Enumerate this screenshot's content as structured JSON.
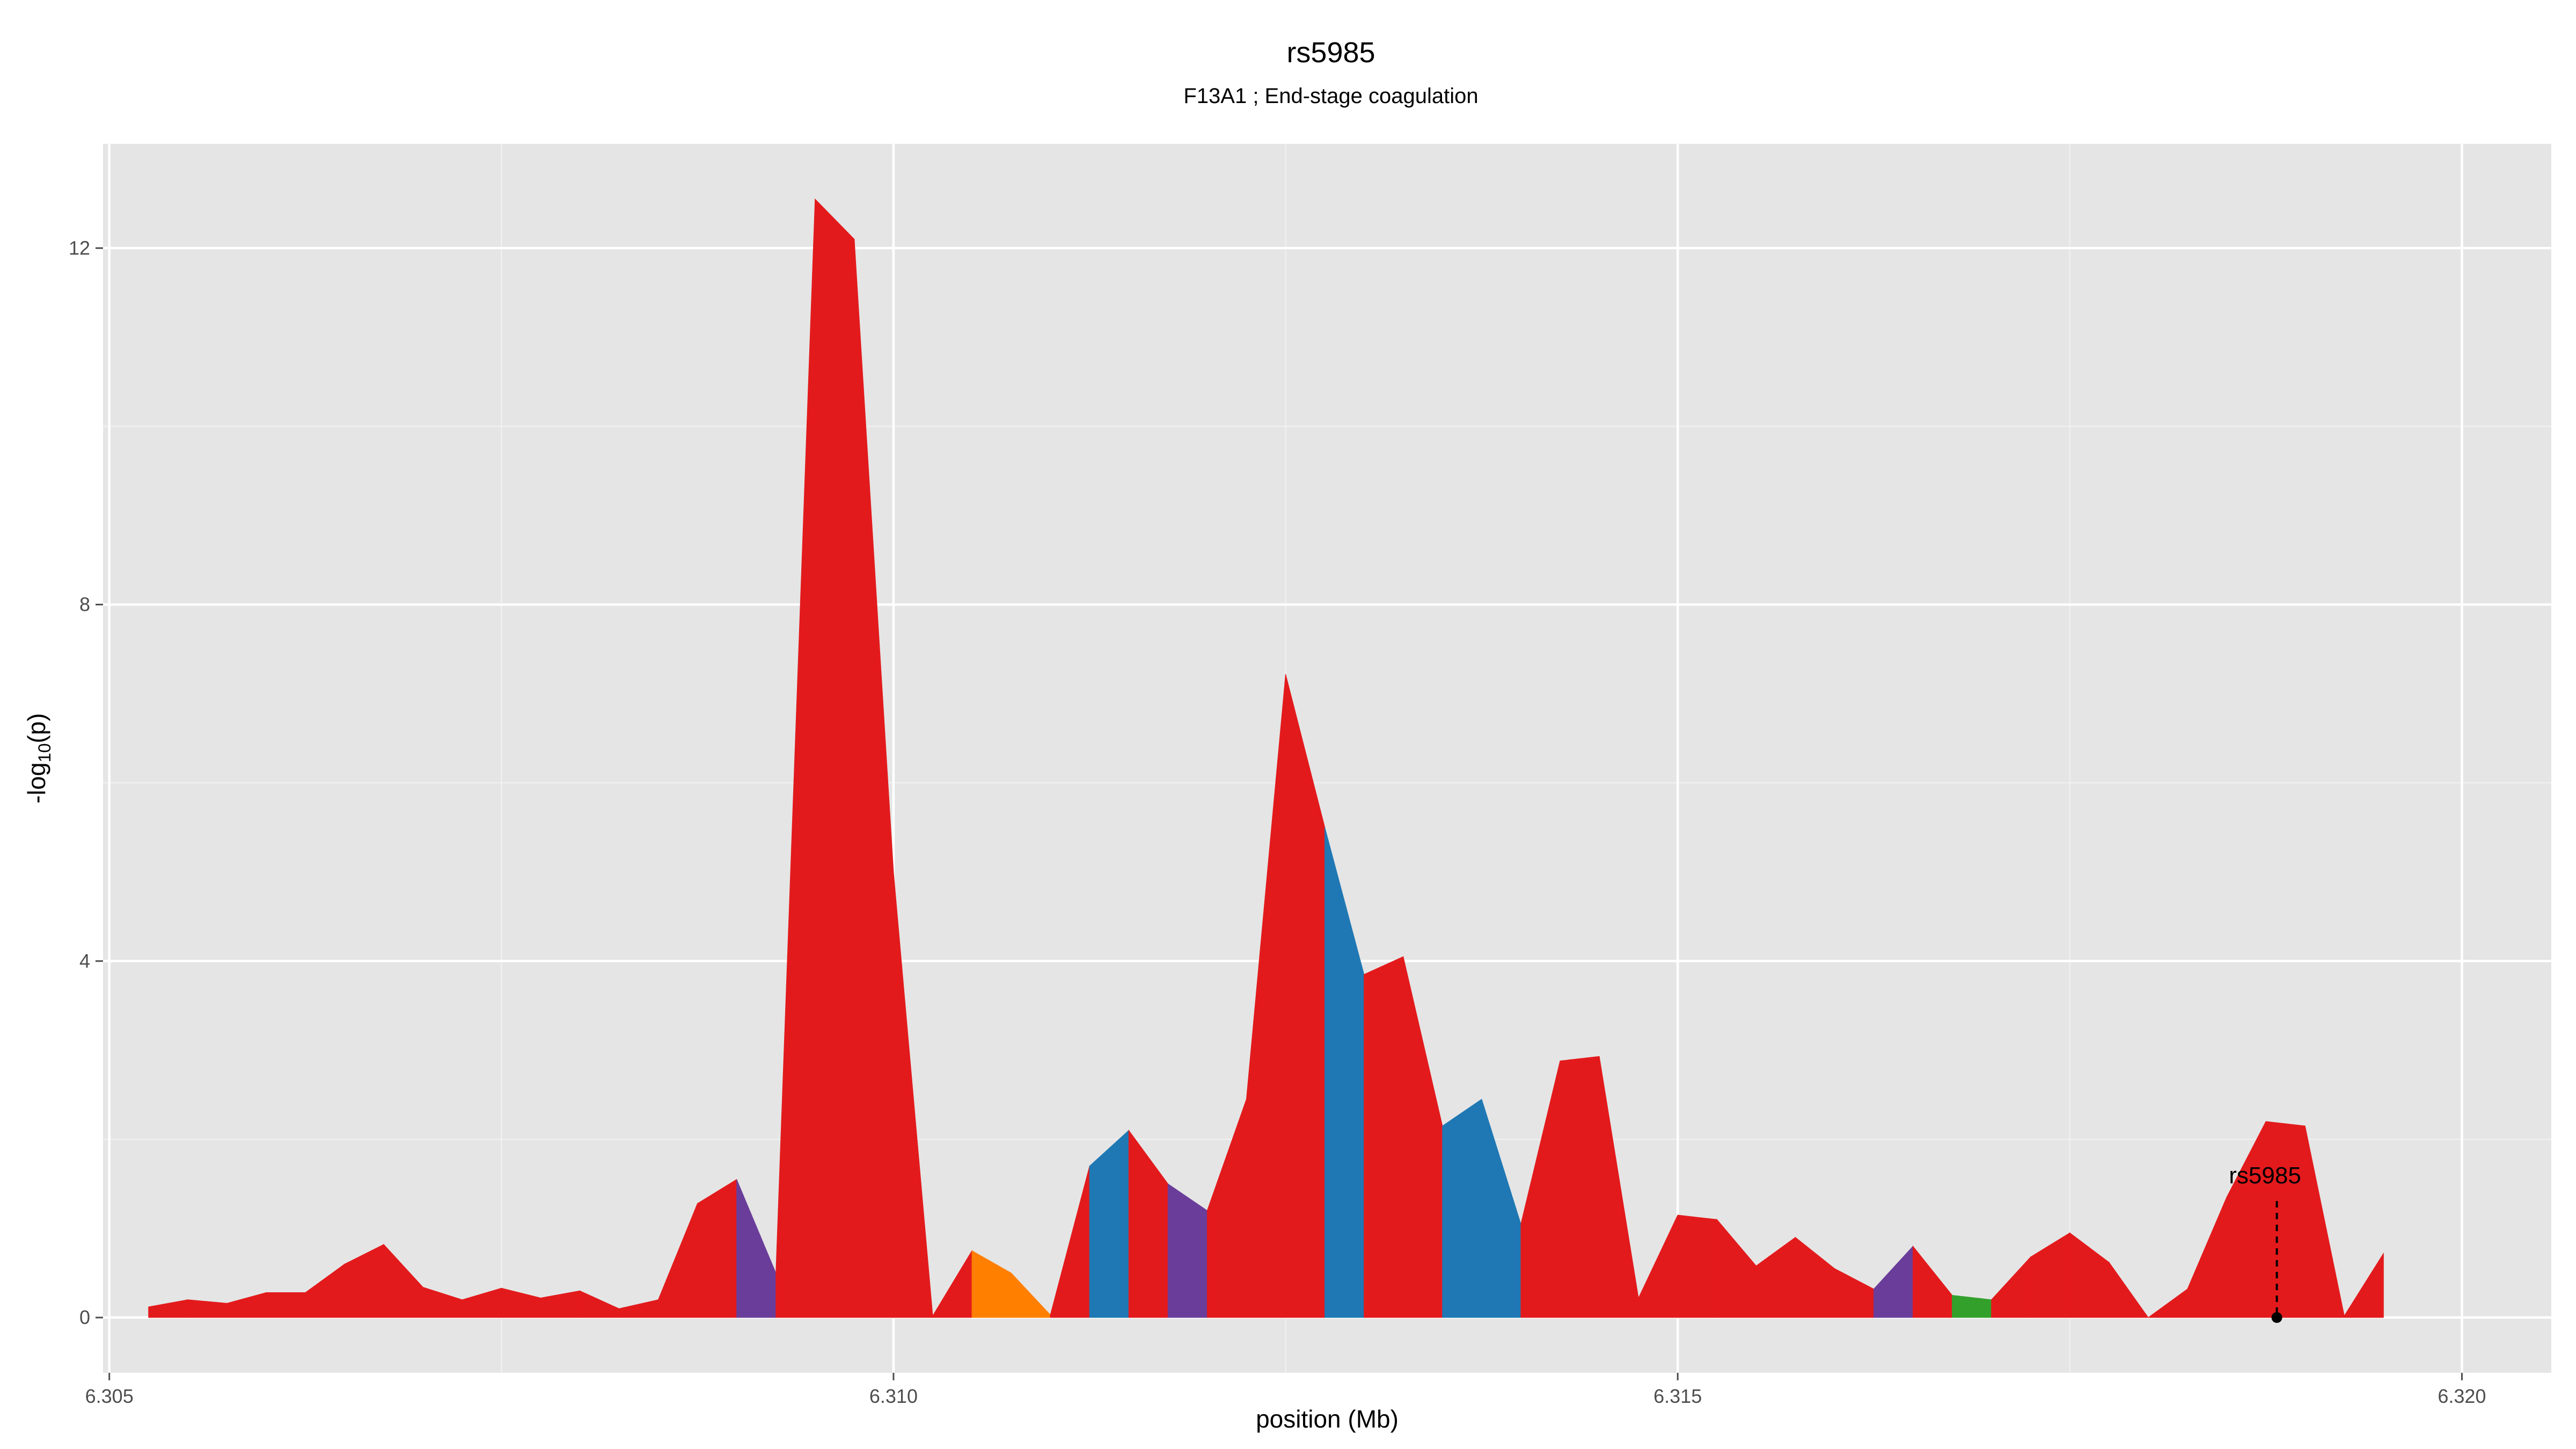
{
  "chart_data": {
    "type": "area",
    "title": "rs5985",
    "subtitle": "F13A1 ; End-stage coagulation",
    "xlabel": "position (Mb)",
    "ylabel": "-log10(p)",
    "ylabel_base": "-log",
    "ylabel_sub": "10",
    "ylabel_tail": "(p)",
    "xlim": [
      6.30496,
      6.32057
    ],
    "ylim": [
      -0.62,
      13.17
    ],
    "xticks": [
      {
        "value": 6.305,
        "label": "6.305"
      },
      {
        "value": 6.31,
        "label": "6.310"
      },
      {
        "value": 6.315,
        "label": "6.315"
      },
      {
        "value": 6.32,
        "label": "6.320"
      }
    ],
    "yticks": [
      {
        "value": 0,
        "label": "0"
      },
      {
        "value": 4,
        "label": "4"
      },
      {
        "value": 8,
        "label": "8"
      },
      {
        "value": 12,
        "label": "12"
      }
    ],
    "grid": true,
    "legend": "none",
    "colors": {
      "red": "#e31a1c",
      "purple": "#6a3d9a",
      "orange": "#ff7f00",
      "blue": "#1f78b4",
      "green": "#33a02c"
    },
    "points": [
      {
        "x": 6.30525,
        "y": 0.12,
        "c": "red"
      },
      {
        "x": 6.3055,
        "y": 0.2,
        "c": "red"
      },
      {
        "x": 6.30575,
        "y": 0.16,
        "c": "red"
      },
      {
        "x": 6.306,
        "y": 0.28,
        "c": "red"
      },
      {
        "x": 6.30625,
        "y": 0.28,
        "c": "red"
      },
      {
        "x": 6.3065,
        "y": 0.6,
        "c": "red"
      },
      {
        "x": 6.30675,
        "y": 0.82,
        "c": "red"
      },
      {
        "x": 6.307,
        "y": 0.34,
        "c": "red"
      },
      {
        "x": 6.30725,
        "y": 0.2,
        "c": "red"
      },
      {
        "x": 6.3075,
        "y": 0.33,
        "c": "red"
      },
      {
        "x": 6.30775,
        "y": 0.22,
        "c": "red"
      },
      {
        "x": 6.308,
        "y": 0.3,
        "c": "red"
      },
      {
        "x": 6.30825,
        "y": 0.1,
        "c": "red"
      },
      {
        "x": 6.3085,
        "y": 0.2,
        "c": "red"
      },
      {
        "x": 6.30875,
        "y": 1.28,
        "c": "red"
      },
      {
        "x": 6.309,
        "y": 1.55,
        "c": "purple"
      },
      {
        "x": 6.30925,
        "y": 0.5,
        "c": "red"
      },
      {
        "x": 6.3095,
        "y": 12.55,
        "c": "red"
      },
      {
        "x": 6.30975,
        "y": 12.1,
        "c": "red"
      },
      {
        "x": 6.31,
        "y": 5.0,
        "c": "red"
      },
      {
        "x": 6.31025,
        "y": 0.02,
        "c": "red"
      },
      {
        "x": 6.3105,
        "y": 0.75,
        "c": "orange"
      },
      {
        "x": 6.31075,
        "y": 0.5,
        "c": "orange"
      },
      {
        "x": 6.311,
        "y": 0.03,
        "c": "red"
      },
      {
        "x": 6.31125,
        "y": 1.7,
        "c": "blue"
      },
      {
        "x": 6.3115,
        "y": 2.1,
        "c": "red"
      },
      {
        "x": 6.31175,
        "y": 1.5,
        "c": "purple"
      },
      {
        "x": 6.312,
        "y": 1.2,
        "c": "red"
      },
      {
        "x": 6.31225,
        "y": 2.45,
        "c": "red"
      },
      {
        "x": 6.3125,
        "y": 7.22,
        "c": "red"
      },
      {
        "x": 6.31275,
        "y": 5.5,
        "c": "blue"
      },
      {
        "x": 6.313,
        "y": 3.85,
        "c": "red"
      },
      {
        "x": 6.31325,
        "y": 4.05,
        "c": "red"
      },
      {
        "x": 6.3135,
        "y": 2.15,
        "c": "blue"
      },
      {
        "x": 6.31375,
        "y": 2.45,
        "c": "blue"
      },
      {
        "x": 6.314,
        "y": 1.05,
        "c": "red"
      },
      {
        "x": 6.31425,
        "y": 2.88,
        "c": "red"
      },
      {
        "x": 6.3145,
        "y": 2.93,
        "c": "red"
      },
      {
        "x": 6.31475,
        "y": 0.22,
        "c": "red"
      },
      {
        "x": 6.315,
        "y": 1.15,
        "c": "red"
      },
      {
        "x": 6.31525,
        "y": 1.1,
        "c": "red"
      },
      {
        "x": 6.3155,
        "y": 0.58,
        "c": "red"
      },
      {
        "x": 6.31575,
        "y": 0.9,
        "c": "red"
      },
      {
        "x": 6.316,
        "y": 0.55,
        "c": "red"
      },
      {
        "x": 6.31625,
        "y": 0.32,
        "c": "purple"
      },
      {
        "x": 6.3165,
        "y": 0.8,
        "c": "red"
      },
      {
        "x": 6.31675,
        "y": 0.25,
        "c": "green"
      },
      {
        "x": 6.317,
        "y": 0.2,
        "c": "red"
      },
      {
        "x": 6.31725,
        "y": 0.68,
        "c": "red"
      },
      {
        "x": 6.3175,
        "y": 0.95,
        "c": "red"
      },
      {
        "x": 6.31775,
        "y": 0.62,
        "c": "red"
      },
      {
        "x": 6.318,
        "y": 0.0,
        "c": "red"
      },
      {
        "x": 6.31825,
        "y": 0.32,
        "c": "red"
      },
      {
        "x": 6.3185,
        "y": 1.35,
        "c": "red"
      },
      {
        "x": 6.31875,
        "y": 2.2,
        "c": "red"
      },
      {
        "x": 6.319,
        "y": 2.15,
        "c": "red"
      },
      {
        "x": 6.31925,
        "y": 0.02,
        "c": "red"
      },
      {
        "x": 6.3195,
        "y": 0.72,
        "c": "red"
      }
    ],
    "annotation": {
      "label": "rs5985",
      "x": 6.31882,
      "y": 0
    }
  }
}
